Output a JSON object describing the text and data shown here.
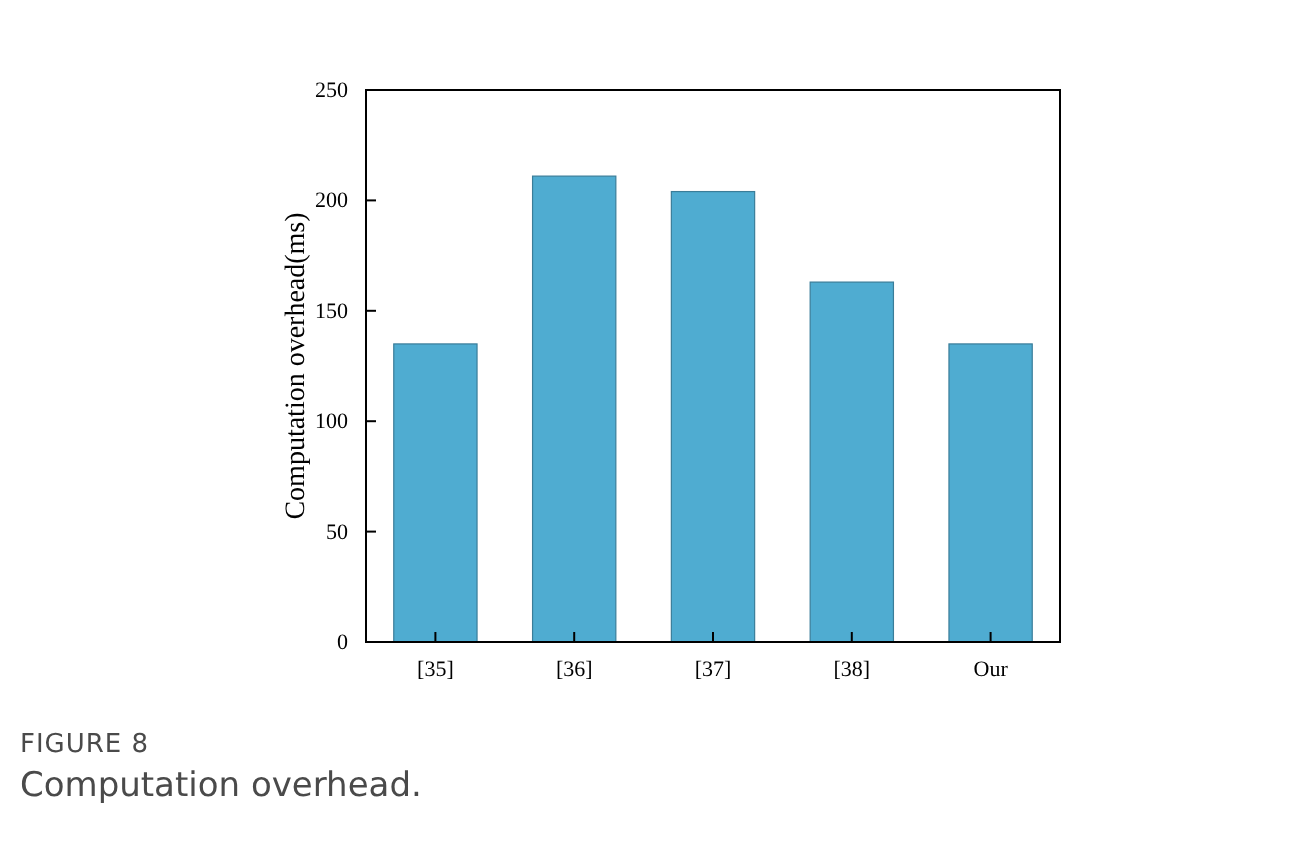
{
  "chart_data": {
    "type": "bar",
    "ylabel": "Computation overhead(ms)",
    "categories": [
      "[35]",
      "[36]",
      "[37]",
      "[38]",
      "Our"
    ],
    "values": [
      135,
      211,
      204,
      163,
      135
    ],
    "color": "#4facd1",
    "ylim": [
      0,
      250
    ],
    "yticks": [
      0,
      50,
      100,
      150,
      200,
      250
    ],
    "grid": false,
    "annotations": [
      "FIGURE 8",
      "Computation overhead."
    ]
  }
}
